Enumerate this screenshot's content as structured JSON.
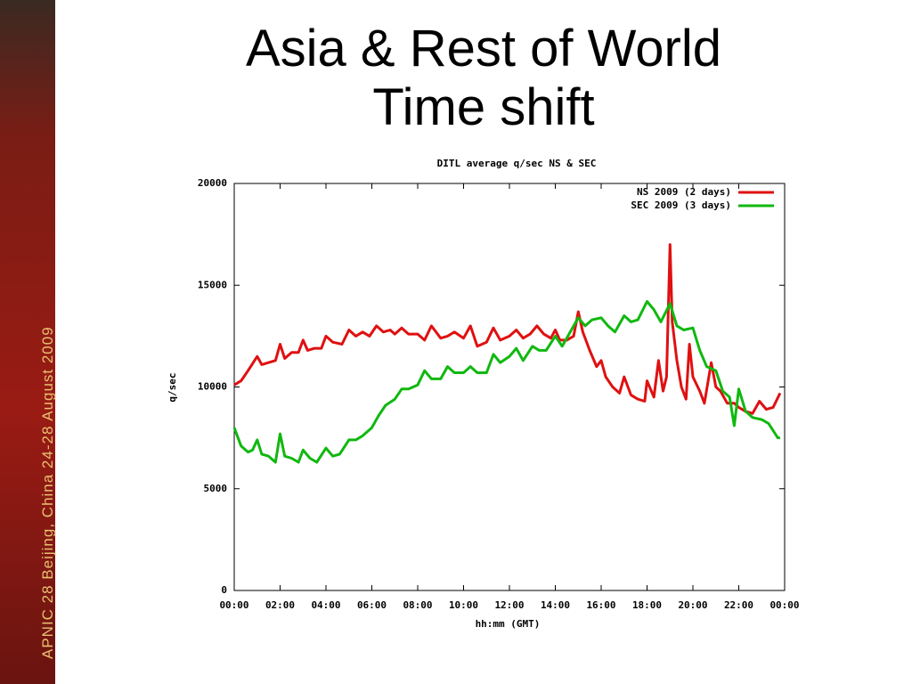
{
  "slide": {
    "title_lines": [
      "Asia & Rest of World",
      "Time shift"
    ],
    "sidebar": "APNIC 28  Beijing, China  24-28 August 2009"
  },
  "chart_data": {
    "type": "line",
    "title": "DITL average q/sec NS & SEC",
    "x_label": "hh:mm (GMT)",
    "y_label": "q/sec",
    "xlim": [
      0,
      24
    ],
    "ylim": [
      0,
      20000
    ],
    "legend": "upper right",
    "xticks": [
      {
        "value": 0,
        "label": "00:00"
      },
      {
        "value": 2,
        "label": "02:00"
      },
      {
        "value": 4,
        "label": "04:00"
      },
      {
        "value": 6,
        "label": "06:00"
      },
      {
        "value": 8,
        "label": "08:00"
      },
      {
        "value": 10,
        "label": "10:00"
      },
      {
        "value": 12,
        "label": "12:00"
      },
      {
        "value": 14,
        "label": "14:00"
      },
      {
        "value": 16,
        "label": "16:00"
      },
      {
        "value": 18,
        "label": "18:00"
      },
      {
        "value": 20,
        "label": "20:00"
      },
      {
        "value": 22,
        "label": "22:00"
      },
      {
        "value": 24,
        "label": "00:00"
      }
    ],
    "yticks": [
      0,
      5000,
      10000,
      15000,
      20000
    ],
    "series": [
      {
        "name": "NS 2009 (2 days)",
        "color": "#e01010",
        "x": [
          0,
          0.3,
          0.6,
          1.0,
          1.2,
          1.5,
          1.8,
          2.0,
          2.2,
          2.5,
          2.8,
          3.0,
          3.2,
          3.5,
          3.8,
          4.0,
          4.3,
          4.7,
          5.0,
          5.3,
          5.6,
          5.9,
          6.2,
          6.5,
          6.8,
          7.0,
          7.3,
          7.6,
          8.0,
          8.3,
          8.6,
          9.0,
          9.3,
          9.6,
          10.0,
          10.3,
          10.6,
          11.0,
          11.3,
          11.6,
          12.0,
          12.3,
          12.6,
          12.9,
          13.2,
          13.5,
          13.8,
          14.0,
          14.2,
          14.5,
          14.8,
          15.0,
          15.2,
          15.5,
          15.8,
          16.0,
          16.2,
          16.5,
          16.8,
          17.0,
          17.3,
          17.6,
          17.9,
          18.0,
          18.3,
          18.5,
          18.7,
          18.85,
          19.0,
          19.1,
          19.3,
          19.5,
          19.7,
          19.85,
          20.0,
          20.3,
          20.5,
          20.8,
          21.0,
          21.2,
          21.5,
          21.8,
          22.0,
          22.3,
          22.6,
          22.9,
          23.2,
          23.5,
          23.8
        ],
        "values": [
          10100,
          10300,
          10800,
          11500,
          11100,
          11200,
          11300,
          12100,
          11400,
          11700,
          11700,
          12300,
          11800,
          11900,
          11900,
          12500,
          12200,
          12100,
          12800,
          12500,
          12700,
          12500,
          13000,
          12700,
          12800,
          12600,
          12900,
          12600,
          12600,
          12300,
          13000,
          12400,
          12500,
          12700,
          12400,
          13000,
          12000,
          12200,
          12900,
          12300,
          12500,
          12800,
          12400,
          12600,
          13000,
          12600,
          12400,
          12800,
          12300,
          12300,
          12500,
          13700,
          12700,
          11800,
          11000,
          11300,
          10500,
          10000,
          9700,
          10500,
          9600,
          9400,
          9300,
          10300,
          9500,
          11300,
          9800,
          10500,
          17000,
          13200,
          11300,
          10000,
          9400,
          12100,
          10500,
          9800,
          9200,
          11200,
          10000,
          9800,
          9200,
          9200,
          9000,
          8800,
          8700,
          9300,
          8900,
          9000,
          9700
        ]
      },
      {
        "name": "SEC 2009 (3 days)",
        "color": "#10b810",
        "x": [
          0,
          0.3,
          0.6,
          0.8,
          1.0,
          1.2,
          1.5,
          1.8,
          2.0,
          2.2,
          2.5,
          2.8,
          3.0,
          3.3,
          3.6,
          4.0,
          4.3,
          4.6,
          5.0,
          5.3,
          5.6,
          6.0,
          6.3,
          6.6,
          7.0,
          7.3,
          7.6,
          8.0,
          8.3,
          8.6,
          9.0,
          9.3,
          9.6,
          10.0,
          10.3,
          10.6,
          11.0,
          11.3,
          11.6,
          12.0,
          12.3,
          12.6,
          13.0,
          13.3,
          13.6,
          14.0,
          14.3,
          14.6,
          15.0,
          15.3,
          15.6,
          16.0,
          16.3,
          16.6,
          17.0,
          17.3,
          17.6,
          18.0,
          18.3,
          18.6,
          19.0,
          19.3,
          19.6,
          20.0,
          20.3,
          20.6,
          21.0,
          21.3,
          21.6,
          21.8,
          22.0,
          22.3,
          22.6,
          23.0,
          23.3,
          23.7,
          23.8
        ],
        "values": [
          8000,
          7100,
          6800,
          6900,
          7400,
          6700,
          6600,
          6300,
          7700,
          6600,
          6500,
          6300,
          6900,
          6500,
          6300,
          7000,
          6600,
          6700,
          7400,
          7400,
          7600,
          8000,
          8600,
          9100,
          9400,
          9900,
          9900,
          10100,
          10800,
          10400,
          10400,
          11000,
          10700,
          10700,
          11000,
          10700,
          10700,
          11600,
          11200,
          11500,
          11900,
          11300,
          12000,
          11800,
          11800,
          12500,
          12000,
          12600,
          13400,
          13000,
          13300,
          13400,
          13000,
          12700,
          13500,
          13200,
          13300,
          14200,
          13800,
          13200,
          14100,
          13000,
          12800,
          12900,
          11800,
          11000,
          10800,
          9800,
          9500,
          8100,
          9900,
          8800,
          8500,
          8400,
          8200,
          7500,
          7500
        ]
      }
    ]
  }
}
